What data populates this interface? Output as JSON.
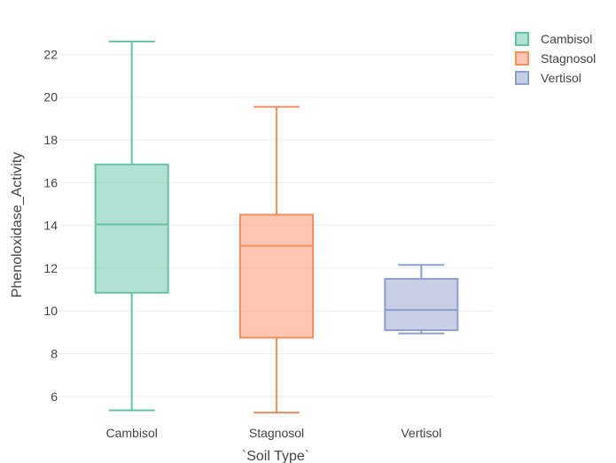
{
  "chart_data": {
    "type": "box",
    "xlabel": "`Soil Type`",
    "ylabel": "Phenoloxidase_Activity",
    "ylim": [
      5.0,
      23.3
    ],
    "yticks": [
      6,
      8,
      10,
      12,
      14,
      16,
      18,
      20,
      22
    ],
    "grid": true,
    "legend_position": "top-right",
    "categories": [
      "Cambisol",
      "Stagnosol",
      "Vertisol"
    ],
    "series": [
      {
        "name": "Cambisol",
        "min": 5.35,
        "q1": 10.85,
        "median": 14.05,
        "q3": 16.85,
        "max": 22.6,
        "color": "#66c2a5"
      },
      {
        "name": "Stagnosol",
        "min": 5.25,
        "q1": 8.75,
        "median": 13.05,
        "q3": 14.5,
        "max": 19.55,
        "color": "#fc8d62"
      },
      {
        "name": "Vertisol",
        "min": 8.95,
        "q1": 9.1,
        "median": 10.05,
        "q3": 11.5,
        "max": 12.15,
        "color": "#8da0cb"
      }
    ]
  }
}
